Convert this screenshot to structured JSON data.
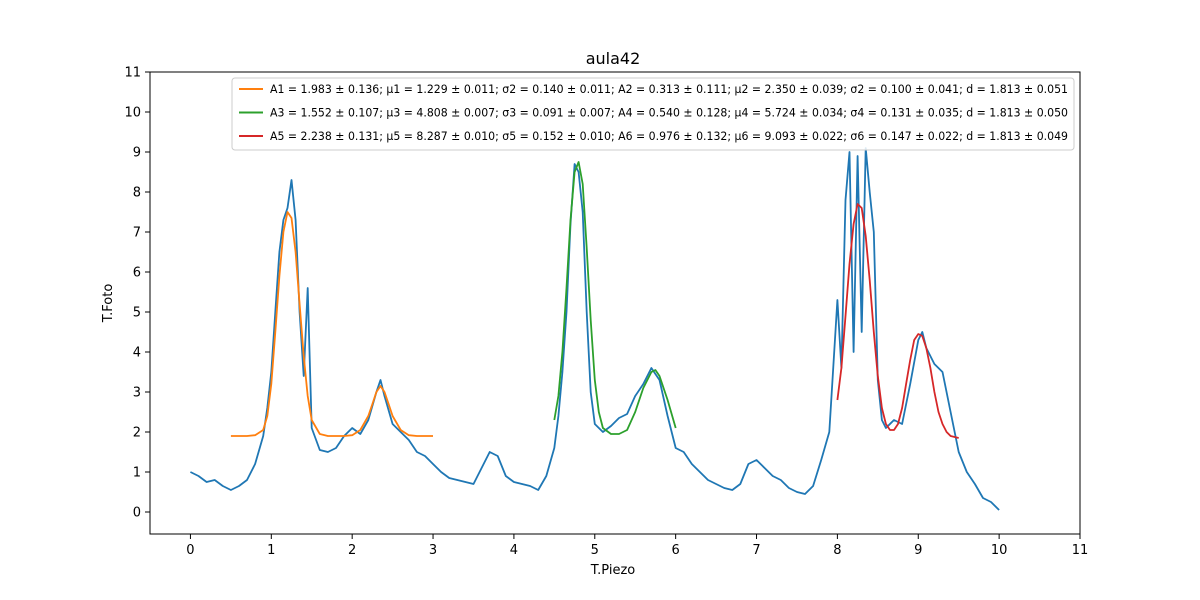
{
  "chart_data": {
    "type": "line",
    "title": "aula42",
    "xlabel": "T.Piezo",
    "ylabel": "T.Foto",
    "xlim": [
      -0.5,
      11
    ],
    "ylim": [
      -0.55,
      11
    ],
    "xticks": [
      "0",
      "1",
      "2",
      "3",
      "4",
      "5",
      "6",
      "7",
      "8",
      "9",
      "10",
      "11"
    ],
    "yticks": [
      "0",
      "1",
      "2",
      "3",
      "4",
      "5",
      "6",
      "7",
      "8",
      "9",
      "10",
      "11"
    ],
    "grid": false,
    "legend_position": "top-right",
    "series": [
      {
        "color": "#1f77b4",
        "role": "data",
        "x": [
          0.0,
          0.1,
          0.2,
          0.3,
          0.4,
          0.5,
          0.6,
          0.7,
          0.8,
          0.9,
          0.95,
          1.0,
          1.05,
          1.1,
          1.15,
          1.2,
          1.25,
          1.3,
          1.35,
          1.4,
          1.45,
          1.5,
          1.6,
          1.7,
          1.8,
          1.9,
          2.0,
          2.1,
          2.2,
          2.3,
          2.35,
          2.4,
          2.5,
          2.6,
          2.7,
          2.8,
          2.9,
          3.0,
          3.1,
          3.2,
          3.3,
          3.4,
          3.5,
          3.6,
          3.7,
          3.8,
          3.9,
          4.0,
          4.1,
          4.2,
          4.3,
          4.4,
          4.5,
          4.55,
          4.6,
          4.65,
          4.7,
          4.75,
          4.8,
          4.85,
          4.9,
          4.95,
          5.0,
          5.1,
          5.2,
          5.3,
          5.4,
          5.5,
          5.6,
          5.7,
          5.75,
          5.8,
          5.9,
          6.0,
          6.1,
          6.2,
          6.3,
          6.4,
          6.5,
          6.6,
          6.7,
          6.8,
          6.9,
          7.0,
          7.1,
          7.2,
          7.3,
          7.4,
          7.5,
          7.6,
          7.7,
          7.8,
          7.9,
          8.0,
          8.05,
          8.1,
          8.15,
          8.2,
          8.25,
          8.3,
          8.35,
          8.4,
          8.45,
          8.5,
          8.55,
          8.6,
          8.7,
          8.8,
          8.9,
          9.0,
          9.05,
          9.1,
          9.2,
          9.3,
          9.4,
          9.5,
          9.6,
          9.7,
          9.8,
          9.9,
          10.0
        ],
        "y": [
          1.0,
          0.9,
          0.75,
          0.8,
          0.65,
          0.55,
          0.65,
          0.8,
          1.2,
          1.9,
          2.6,
          3.5,
          5.0,
          6.5,
          7.3,
          7.6,
          8.3,
          7.3,
          5.0,
          3.4,
          5.6,
          2.1,
          1.55,
          1.5,
          1.6,
          1.9,
          2.1,
          1.95,
          2.3,
          3.0,
          3.3,
          2.9,
          2.2,
          2.0,
          1.8,
          1.5,
          1.4,
          1.2,
          1.0,
          0.85,
          0.8,
          0.75,
          0.7,
          1.1,
          1.5,
          1.4,
          0.9,
          0.75,
          0.7,
          0.65,
          0.55,
          0.9,
          1.6,
          2.4,
          3.5,
          5.0,
          7.2,
          8.7,
          8.5,
          7.5,
          5.0,
          3.0,
          2.2,
          2.0,
          2.15,
          2.35,
          2.45,
          2.9,
          3.2,
          3.6,
          3.45,
          3.3,
          2.4,
          1.6,
          1.5,
          1.2,
          1.0,
          0.8,
          0.7,
          0.6,
          0.55,
          0.7,
          1.2,
          1.3,
          1.1,
          0.9,
          0.8,
          0.6,
          0.5,
          0.45,
          0.65,
          1.3,
          2.0,
          5.3,
          3.6,
          7.8,
          9.0,
          4.0,
          8.9,
          4.5,
          9.1,
          8.0,
          7.0,
          3.3,
          2.3,
          2.1,
          2.3,
          2.2,
          3.2,
          4.3,
          4.5,
          4.1,
          3.7,
          3.5,
          2.5,
          1.5,
          1.0,
          0.7,
          0.35,
          0.25,
          0.05
        ]
      },
      {
        "color": "#ff7f0e",
        "role": "fit",
        "legend": "A1 = 1.983 ± 0.136; μ1 = 1.229 ± 0.011; σ2 = 0.140 ± 0.011; A2 = 0.313 ± 0.111; μ2 = 2.350 ± 0.039; σ2 = 0.100 ± 0.041; d = 1.813 ± 0.051",
        "x": [
          0.5,
          0.7,
          0.8,
          0.9,
          0.95,
          1.0,
          1.05,
          1.1,
          1.15,
          1.2,
          1.25,
          1.3,
          1.35,
          1.4,
          1.45,
          1.5,
          1.6,
          1.7,
          1.8,
          1.9,
          2.0,
          2.1,
          2.2,
          2.25,
          2.3,
          2.35,
          2.4,
          2.45,
          2.5,
          2.6,
          2.7,
          2.8,
          3.0
        ],
        "y": [
          1.9,
          1.9,
          1.92,
          2.05,
          2.4,
          3.2,
          4.5,
          5.9,
          7.0,
          7.5,
          7.35,
          6.5,
          5.2,
          3.9,
          2.9,
          2.3,
          1.95,
          1.9,
          1.9,
          1.9,
          1.92,
          2.05,
          2.4,
          2.7,
          3.0,
          3.15,
          3.0,
          2.7,
          2.4,
          2.05,
          1.92,
          1.9,
          1.9
        ]
      },
      {
        "color": "#2ca02c",
        "role": "fit",
        "legend": "A3 = 1.552 ± 0.107; μ3 = 4.808 ± 0.007; σ3 = 0.091 ± 0.007; A4 = 0.540 ± 0.128; μ4 = 5.724 ± 0.034; σ4 = 0.131 ± 0.035; d = 1.813 ± 0.050",
        "x": [
          4.5,
          4.55,
          4.6,
          4.65,
          4.7,
          4.75,
          4.8,
          4.85,
          4.9,
          4.95,
          5.0,
          5.05,
          5.1,
          5.2,
          5.3,
          5.4,
          5.5,
          5.6,
          5.7,
          5.75,
          5.8,
          5.9,
          6.0
        ],
        "y": [
          2.3,
          2.9,
          4.0,
          5.6,
          7.3,
          8.5,
          8.75,
          8.2,
          6.6,
          4.8,
          3.3,
          2.5,
          2.1,
          1.95,
          1.95,
          2.05,
          2.5,
          3.1,
          3.5,
          3.55,
          3.4,
          2.8,
          2.1
        ]
      },
      {
        "color": "#d62728",
        "role": "fit",
        "legend": "A5 = 2.238 ± 0.131; μ5 = 8.287 ± 0.010; σ5 = 0.152 ± 0.010; A6 = 0.976 ± 0.132; μ6 = 9.093 ± 0.022; σ6 = 0.147 ± 0.022; d = 1.813 ± 0.049",
        "x": [
          8.0,
          8.05,
          8.1,
          8.15,
          8.2,
          8.25,
          8.3,
          8.35,
          8.4,
          8.45,
          8.5,
          8.55,
          8.6,
          8.65,
          8.7,
          8.75,
          8.8,
          8.85,
          8.9,
          8.95,
          9.0,
          9.05,
          9.1,
          9.15,
          9.2,
          9.25,
          9.3,
          9.35,
          9.4,
          9.5
        ],
        "y": [
          2.8,
          3.6,
          4.9,
          6.2,
          7.2,
          7.7,
          7.6,
          6.9,
          5.8,
          4.5,
          3.4,
          2.6,
          2.2,
          2.05,
          2.05,
          2.2,
          2.6,
          3.2,
          3.8,
          4.3,
          4.45,
          4.4,
          4.1,
          3.6,
          3.0,
          2.5,
          2.2,
          2.0,
          1.9,
          1.85
        ]
      }
    ]
  }
}
